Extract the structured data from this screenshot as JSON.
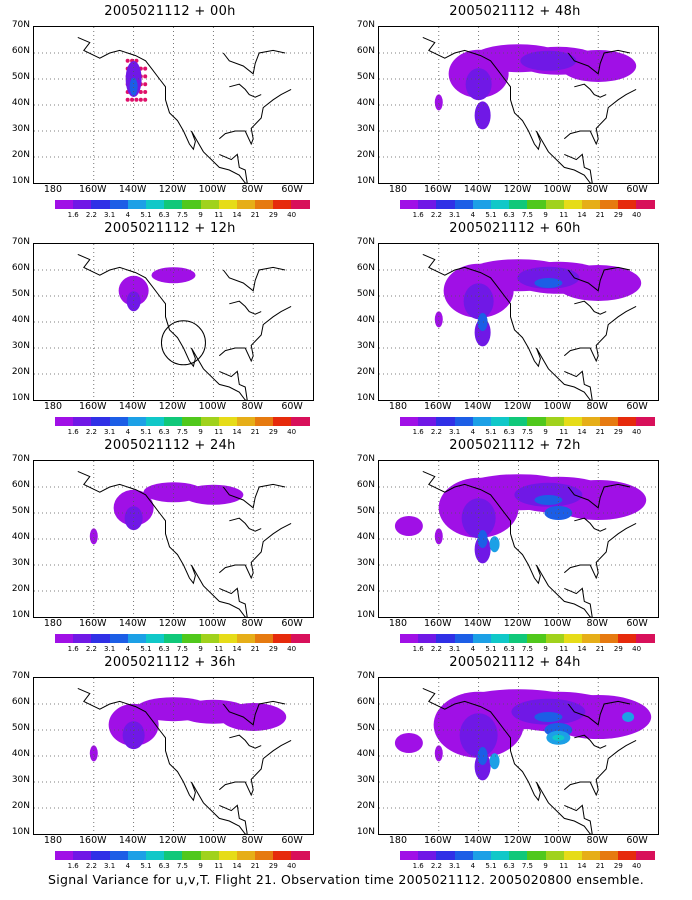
{
  "panels": [
    {
      "title": "2005021112 + 00h",
      "level": 0
    },
    {
      "title": "2005021112 + 48h",
      "level": 4
    },
    {
      "title": "2005021112 + 12h",
      "level": 1
    },
    {
      "title": "2005021112 + 60h",
      "level": 5
    },
    {
      "title": "2005021112 + 24h",
      "level": 2
    },
    {
      "title": "2005021112 + 72h",
      "level": 6
    },
    {
      "title": "2005021112 + 36h",
      "level": 3
    },
    {
      "title": "2005021112 + 84h",
      "level": 7
    }
  ],
  "map": {
    "lat_labels": [
      "70N",
      "60N",
      "50N",
      "40N",
      "30N",
      "20N",
      "10N"
    ],
    "lon_labels": [
      "180",
      "160W",
      "140W",
      "120W",
      "100W",
      "80W",
      "60W"
    ]
  },
  "colorbar": {
    "labels": [
      "1.6",
      "2.2",
      "3.1",
      "4",
      "5.1",
      "6.3",
      "7.5",
      "9",
      "11",
      "14",
      "21",
      "29",
      "40"
    ],
    "colors": [
      "#a010e6",
      "#7018e6",
      "#3030e6",
      "#1c5ee6",
      "#1ca0e6",
      "#10c8c8",
      "#10c87a",
      "#50c81c",
      "#a0d21c",
      "#e6dc18",
      "#e6ae18",
      "#e67a10",
      "#e62a0c",
      "#d8105a"
    ]
  },
  "footer": "Signal Variance for u,v,T. Flight 21. Observation time 2005021112. 2005020800 ensemble."
}
